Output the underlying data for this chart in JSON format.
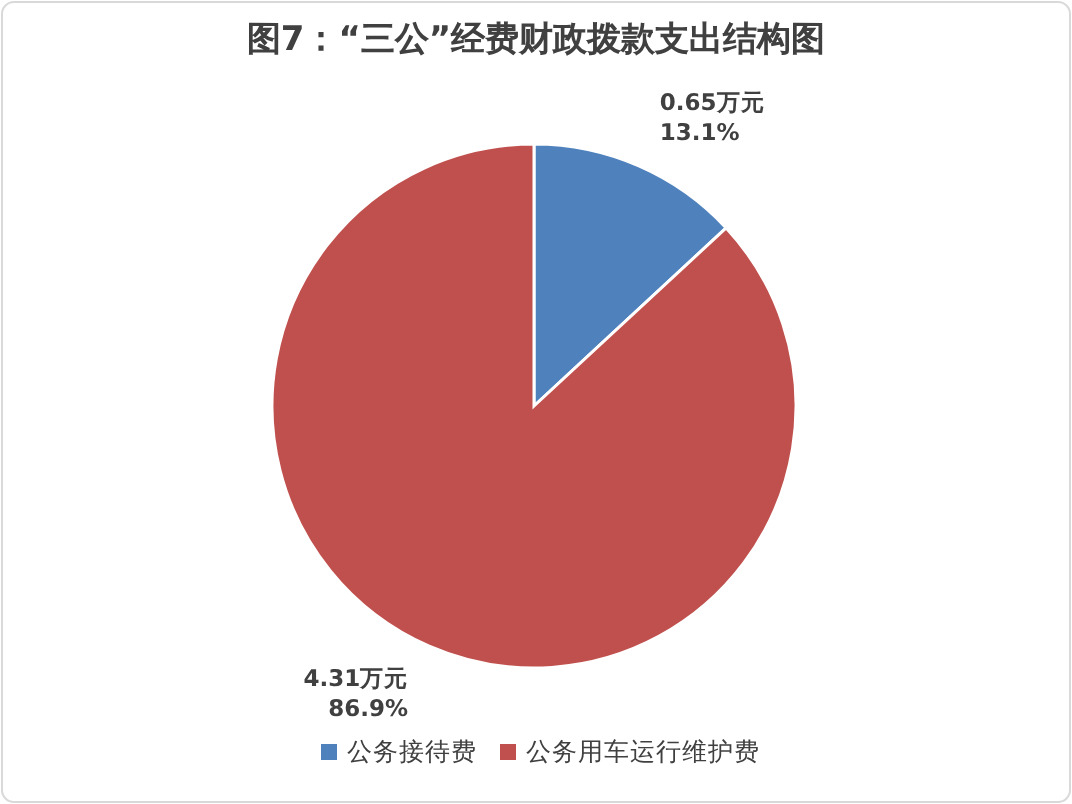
{
  "chart_data": {
    "type": "pie",
    "title": "图7：“三公”经费财政拨款支出结构图",
    "categories": [
      "公务接待费",
      "公务用车运行维护费"
    ],
    "values": [
      0.65,
      4.31
    ],
    "colors": [
      "#4f81bd",
      "#c0504d"
    ],
    "value_labels": [
      "0.65万元\n13.1%",
      "4.31万元\n86.9%"
    ],
    "legend": "bottom"
  }
}
